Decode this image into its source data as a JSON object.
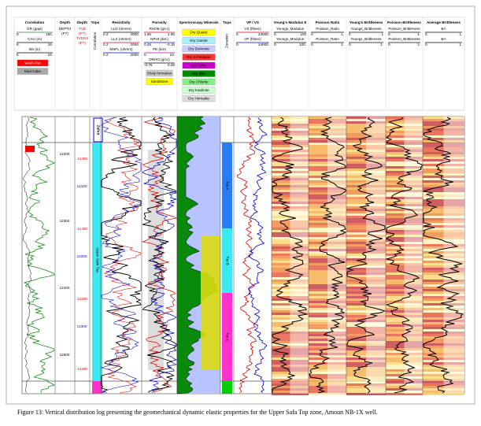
{
  "tracks": [
    {
      "title": "Correlation",
      "curves": [
        {
          "name": "GR (gapi)",
          "min": "0.",
          "max": "150."
        },
        {
          "name": "CALI (in)",
          "min": "6.",
          "max": "16."
        },
        {
          "name": "BS (in)",
          "min": "6.",
          "max": "16."
        }
      ],
      "legend": [
        "Wash-Out",
        "Mud-Cake"
      ]
    },
    {
      "title": "Depth",
      "lines": [
        "DEPTH",
        "(FT)"
      ]
    },
    {
      "title": "Depth",
      "lines": [
        "TVD",
        "(FT)",
        "TVDSS",
        "(FT)"
      ]
    },
    {
      "title": "Tops",
      "vertical": "Correlation"
    },
    {
      "title": "Resistivity",
      "curves": [
        {
          "name": "LLD (ohmm)",
          "min": "0.2",
          "max": "2000."
        },
        {
          "name": "LLS (ohmm)",
          "min": "0.2",
          "max": "2000."
        },
        {
          "name": "MSFL (ohmm)",
          "min": "0.2",
          "max": "2000."
        }
      ]
    },
    {
      "title": "Porosity",
      "curves": [
        {
          "name": "RHOB (g/cc)",
          "min": "1.95",
          "max": "2.95"
        },
        {
          "name": "NPHI (dec)",
          "min": "0.45",
          "max": "-0.15"
        },
        {
          "name": "PE (b/e)",
          "min": "0.",
          "max": "10."
        },
        {
          "name": "DRHO (g/cc)",
          "min": "-0.75",
          "max": "0.25"
        }
      ],
      "legend": [
        "Shaly formation",
        "Sandstone"
      ]
    },
    {
      "title": "Spectroscopy Minerals",
      "legend": [
        "Dry Quartz",
        "Dry Calcite",
        "Dry Dolomite",
        "Dry K-Feldspar",
        "Dry Pyrite",
        "Dry Illite",
        "Dry Chlorite",
        "Dry Kaolinite",
        "Dry Hematite"
      ]
    },
    {
      "title": "Tops",
      "vertical": "Zonation"
    },
    {
      "title": "VP / VS",
      "curves": [
        {
          "name": "VS (ft/sec)",
          "min": "0.",
          "max": "24000."
        },
        {
          "name": "VP (ft/sec)",
          "min": "0.",
          "max": "24000."
        }
      ]
    },
    {
      "title": "Young's Modulus E",
      "curves": [
        {
          "name": "Youngs_Modulus",
          "min": "0.",
          "max": "100"
        },
        {
          "name": "Youngs_Modulus",
          "min": "0.",
          "max": "100."
        }
      ]
    },
    {
      "title": "Poisson Ratio",
      "curves": [
        {
          "name": "Poisson_Ratio",
          "min": "0.",
          "max": "1."
        },
        {
          "name": "Poisson_Ratio",
          "min": "0.",
          "max": "1."
        }
      ]
    },
    {
      "title": "Young's Brittleness",
      "curves": [
        {
          "name": "Youngs_Brittleness",
          "min": "0",
          "max": "1"
        },
        {
          "name": "Youngs_Brittleness",
          "min": "0.",
          "max": "1."
        }
      ]
    },
    {
      "title": "Poisson Brittleness",
      "curves": [
        {
          "name": "Poisson_Brittleness",
          "min": "0.",
          "max": "1."
        },
        {
          "name": "Poisson_Brittleness",
          "min": "0.",
          "max": "1."
        }
      ]
    },
    {
      "title": "Average Brittleness",
      "curves": [
        {
          "name": "BA",
          "min": "0.",
          "max": "1."
        },
        {
          "name": "BA",
          "min": "0.",
          "max": "1."
        }
      ]
    }
  ],
  "depth_labels": [
    12200,
    12300,
    12400,
    12500
  ],
  "tvdss_labels": [
    -11300,
    -11400,
    -11500,
    -11600
  ],
  "tvd_labels": [
    12100,
    12200,
    12300
  ],
  "formations": [
    "Zahra",
    "Upper Safa Top"
  ],
  "tops": [
    "Top A",
    "Top B",
    "Top C"
  ],
  "caption": "Figure 13: Vertical distribution log presenting the geomechanical dynamic elastic properties for the Upper Safa Top zone, Amoun NB-1X well."
}
